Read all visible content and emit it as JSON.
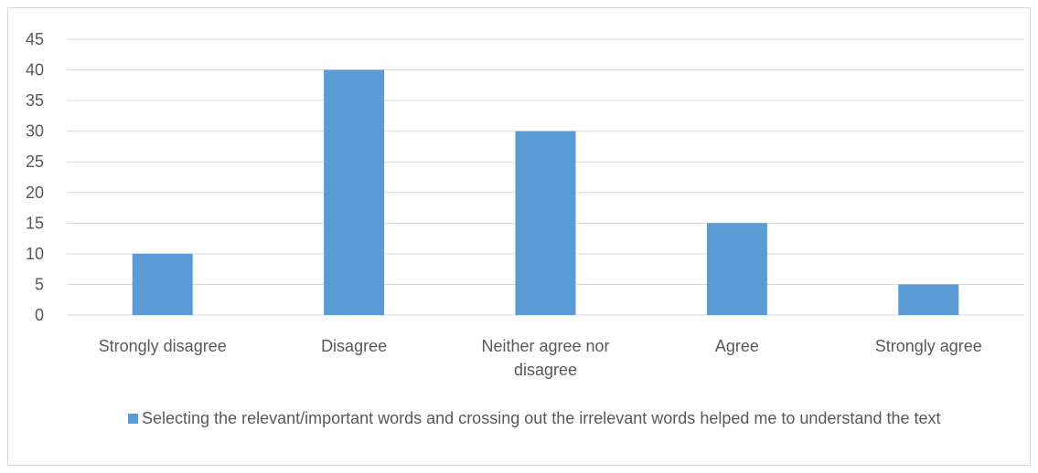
{
  "chart_data": {
    "type": "bar",
    "title": "",
    "xlabel": "",
    "ylabel": "",
    "categories": [
      [
        "Strongly disagree"
      ],
      [
        "Disagree"
      ],
      [
        "Neither agree nor",
        "disagree"
      ],
      [
        "Agree"
      ],
      [
        "Strongly agree"
      ]
    ],
    "series": [
      {
        "name": "Selecting the relevant/important words and crossing out the irrelevant words helped me to understand the text",
        "values": [
          10,
          40,
          30,
          15,
          5
        ],
        "color": "#5b9bd5"
      }
    ],
    "ylim": [
      0,
      45
    ],
    "yticks": [
      "0",
      "5",
      "10",
      "15",
      "20",
      "25",
      "30",
      "35",
      "40",
      "45"
    ],
    "grid": true,
    "legend_position": "bottom",
    "gridline_color": "#d9d9d9",
    "label_color": "#595959"
  }
}
